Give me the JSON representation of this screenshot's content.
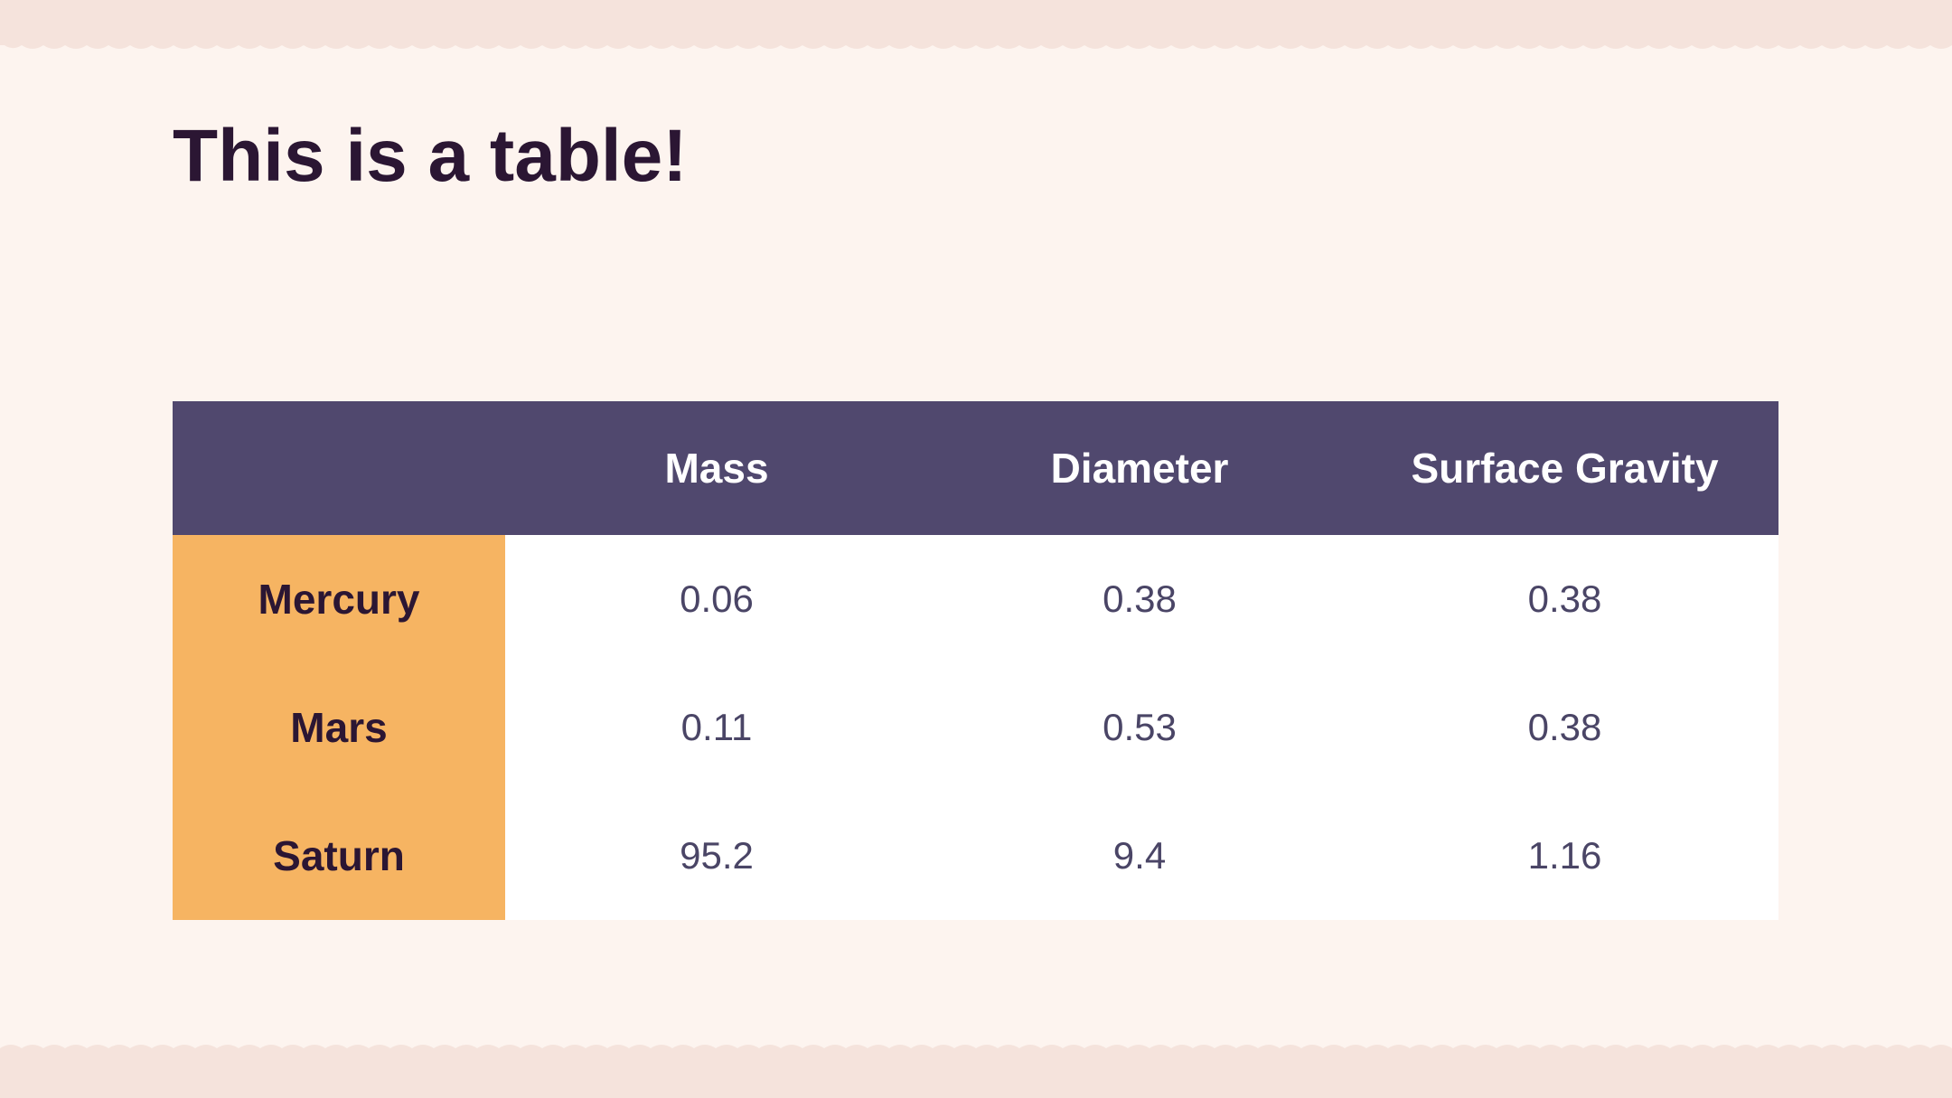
{
  "slide": {
    "title": "This is a table!"
  },
  "table": {
    "headers": [
      "",
      "Mass",
      "Diameter",
      "Surface Gravity"
    ],
    "rows": [
      {
        "label": "Mercury",
        "mass": "0.06",
        "diameter": "0.38",
        "gravity": "0.38"
      },
      {
        "label": "Mars",
        "mass": "0.11",
        "diameter": "0.53",
        "gravity": "0.38"
      },
      {
        "label": "Saturn",
        "mass": "95.2",
        "diameter": "9.4",
        "gravity": "1.16"
      }
    ]
  },
  "colors": {
    "background": "#fdf4ef",
    "band": "#f5e3dc",
    "header_bg": "#50486e",
    "row_label_bg": "#f6b462",
    "title_text": "#2b1633"
  }
}
